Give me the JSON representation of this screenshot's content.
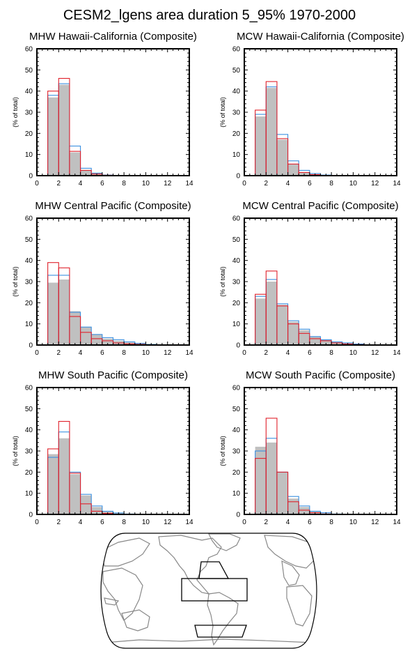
{
  "title": "CESM2_lgens area duration 5_95% 1970-2000",
  "colors": {
    "gray_fill": "#c0c0c0",
    "blue_line": "#3a8fe0",
    "red_line": "#e0202a",
    "map_land": "#888888"
  },
  "chart_data": [
    {
      "type": "bar",
      "title": "MHW Hawaii-California (Composite)",
      "ylabel": "(% of total)",
      "xlim": [
        0,
        14
      ],
      "ylim": [
        0,
        60
      ],
      "xticks": [
        "0",
        "2",
        "4",
        "6",
        "8",
        "10",
        "12",
        "14"
      ],
      "yticks": [
        "0",
        "10",
        "20",
        "30",
        "40",
        "50",
        "60"
      ],
      "bin_starts": [
        1,
        2,
        3,
        4,
        5,
        6,
        7,
        8,
        9,
        10,
        11,
        12,
        13
      ],
      "series": [
        {
          "values": [
            37,
            43,
            11,
            2.5,
            0.8,
            0.2,
            0.05,
            0,
            0,
            0,
            0,
            0,
            0
          ]
        },
        {
          "values": [
            38,
            43.5,
            14,
            3.5,
            1.2,
            0.3,
            0.1,
            0,
            0,
            0,
            0,
            0,
            0
          ]
        },
        {
          "values": [
            40,
            46,
            11.5,
            2.5,
            0.8,
            0.2,
            0.05,
            0,
            0,
            0,
            0,
            0,
            0
          ]
        }
      ]
    },
    {
      "type": "bar",
      "title": "MCW Hawaii-California (Composite)",
      "ylabel": "(% of total)",
      "xlim": [
        0,
        14
      ],
      "ylim": [
        0,
        60
      ],
      "xticks": [
        "0",
        "2",
        "4",
        "6",
        "8",
        "10",
        "12",
        "14"
      ],
      "yticks": [
        "0",
        "10",
        "20",
        "30",
        "40",
        "50",
        "60"
      ],
      "bin_starts": [
        1,
        2,
        3,
        4,
        5,
        6,
        7,
        8,
        9,
        10,
        11,
        12,
        13
      ],
      "series": [
        {
          "values": [
            28,
            41.5,
            17,
            5.5,
            1.5,
            0.5,
            0.1,
            0,
            0,
            0,
            0,
            0,
            0
          ]
        },
        {
          "values": [
            29,
            42,
            19.5,
            7,
            2.5,
            1,
            0.3,
            0.1,
            0,
            0,
            0,
            0,
            0
          ]
        },
        {
          "values": [
            31,
            44.5,
            17.5,
            5.5,
            1.5,
            0.5,
            0.1,
            0,
            0,
            0,
            0,
            0,
            0
          ]
        }
      ]
    },
    {
      "type": "bar",
      "title": "MHW Central Pacific (Composite)",
      "ylabel": "(% of total)",
      "xlim": [
        0,
        14
      ],
      "ylim": [
        0,
        60
      ],
      "xticks": [
        "0",
        "2",
        "4",
        "6",
        "8",
        "10",
        "12",
        "14"
      ],
      "yticks": [
        "0",
        "10",
        "20",
        "30",
        "40",
        "50",
        "60"
      ],
      "bin_starts": [
        1,
        2,
        3,
        4,
        5,
        6,
        7,
        8,
        9,
        10,
        11,
        12,
        13
      ],
      "series": [
        {
          "values": [
            29.5,
            31,
            16,
            8.5,
            5,
            3,
            2,
            1.2,
            0.8,
            0.3,
            0.1,
            0.05,
            0
          ]
        },
        {
          "values": [
            33,
            33,
            15.5,
            8.5,
            5,
            3.5,
            2.5,
            1.5,
            0.8,
            0.3,
            0.1,
            0.05,
            0
          ]
        },
        {
          "values": [
            39,
            36.5,
            13.5,
            6,
            3,
            2,
            1,
            0.6,
            0.3,
            0.1,
            0.05,
            0,
            0
          ]
        }
      ]
    },
    {
      "type": "bar",
      "title": "MCW Central Pacific (Composite)",
      "ylabel": "(% of total)",
      "xlim": [
        0,
        14
      ],
      "ylim": [
        0,
        60
      ],
      "xticks": [
        "0",
        "2",
        "4",
        "6",
        "8",
        "10",
        "12",
        "14"
      ],
      "yticks": [
        "0",
        "10",
        "20",
        "30",
        "40",
        "50",
        "60"
      ],
      "bin_starts": [
        1,
        2,
        3,
        4,
        5,
        6,
        7,
        8,
        9,
        10,
        11,
        12,
        13
      ],
      "series": [
        {
          "values": [
            22,
            30,
            19,
            11,
            7,
            4,
            2.5,
            1.5,
            0.8,
            0.4,
            0.1,
            0.05,
            0
          ]
        },
        {
          "values": [
            23,
            31,
            19.5,
            11.5,
            7.5,
            4,
            2.5,
            1.5,
            1,
            0.5,
            0.1,
            0.05,
            0
          ]
        },
        {
          "values": [
            24,
            35,
            18.5,
            10,
            5.5,
            3,
            2,
            1,
            0.5,
            0.2,
            0.1,
            0,
            0
          ]
        }
      ]
    },
    {
      "type": "bar",
      "title": "MHW South Pacific (Composite)",
      "ylabel": "(% of total)",
      "xlim": [
        0,
        14
      ],
      "ylim": [
        0,
        60
      ],
      "xticks": [
        "0",
        "2",
        "4",
        "6",
        "8",
        "10",
        "12",
        "14"
      ],
      "yticks": [
        "0",
        "10",
        "20",
        "30",
        "40",
        "50",
        "60"
      ],
      "bin_starts": [
        1,
        2,
        3,
        4,
        5,
        6,
        7,
        8,
        9,
        10,
        11,
        12,
        13
      ],
      "series": [
        {
          "values": [
            28.5,
            36,
            19,
            9,
            3.5,
            1.5,
            0.5,
            0.2,
            0,
            0,
            0,
            0,
            0
          ]
        },
        {
          "values": [
            27,
            39,
            20,
            9.5,
            4,
            1.5,
            0.7,
            0.2,
            0,
            0,
            0,
            0,
            0
          ]
        },
        {
          "values": [
            31,
            44,
            19.5,
            5,
            1.5,
            0.5,
            0.1,
            0,
            0,
            0,
            0,
            0,
            0
          ]
        }
      ]
    },
    {
      "type": "bar",
      "title": "MCW South Pacific (Composite)",
      "ylabel": "(% of total)",
      "xlim": [
        0,
        14
      ],
      "ylim": [
        0,
        60
      ],
      "xticks": [
        "0",
        "2",
        "4",
        "6",
        "8",
        "10",
        "12",
        "14"
      ],
      "yticks": [
        "0",
        "10",
        "20",
        "30",
        "40",
        "50",
        "60"
      ],
      "bin_starts": [
        1,
        2,
        3,
        4,
        5,
        6,
        7,
        8,
        9,
        10,
        11,
        12,
        13
      ],
      "series": [
        {
          "values": [
            32,
            34,
            20,
            7.5,
            3.5,
            1.5,
            0.5,
            0.1,
            0,
            0,
            0,
            0,
            0
          ]
        },
        {
          "values": [
            30,
            36,
            20,
            8.5,
            4,
            1.5,
            0.8,
            0.2,
            0,
            0,
            0,
            0,
            0
          ]
        },
        {
          "values": [
            26.5,
            45.5,
            20,
            6,
            2,
            0.8,
            0.2,
            0,
            0,
            0,
            0,
            0,
            0
          ]
        }
      ]
    }
  ],
  "map": {
    "type": "world-map",
    "regions": [
      "Hawaii-California",
      "Central Pacific",
      "South Pacific"
    ]
  }
}
